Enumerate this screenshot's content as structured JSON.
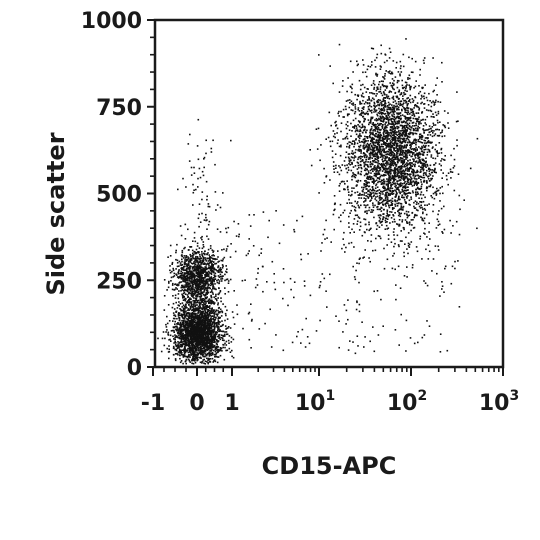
{
  "chart_data": {
    "type": "scatter",
    "xlabel": "CD15-APC",
    "ylabel": "Side scatter",
    "x_scale": "biexponential",
    "xlim": [
      -1,
      1000
    ],
    "ylim": [
      0,
      1000
    ],
    "x_ticks": [
      {
        "value": -1,
        "base": "-1",
        "sup": ""
      },
      {
        "value": 0,
        "base": "0",
        "sup": ""
      },
      {
        "value": 1,
        "base": "1",
        "sup": ""
      },
      {
        "value": 10,
        "base": "10",
        "sup": "1"
      },
      {
        "value": 100,
        "base": "10",
        "sup": "2"
      },
      {
        "value": 1000,
        "base": "10",
        "sup": "3"
      }
    ],
    "y_ticks": [
      {
        "value": 0,
        "label": "0"
      },
      {
        "value": 250,
        "label": "250"
      },
      {
        "value": 500,
        "label": "500"
      },
      {
        "value": 750,
        "label": "750"
      },
      {
        "value": 1000,
        "label": "1000"
      }
    ],
    "grid": false,
    "legend": "none",
    "point_color": "#111111",
    "populations": [
      {
        "x_center": 0,
        "y_center": 100,
        "y_spread": 45,
        "count": 2200
      },
      {
        "x_center": 0,
        "y_center": 260,
        "y_spread": 40,
        "count": 1100
      },
      {
        "x_center": 60,
        "y_center": 620,
        "y_spread": 110,
        "count": 3200
      },
      {
        "x_center": 0,
        "y_center": 450,
        "y_spread": 170,
        "count": 90
      },
      {
        "x_center": 15,
        "y_center": 300,
        "y_spread": 220,
        "count": 260
      }
    ]
  }
}
